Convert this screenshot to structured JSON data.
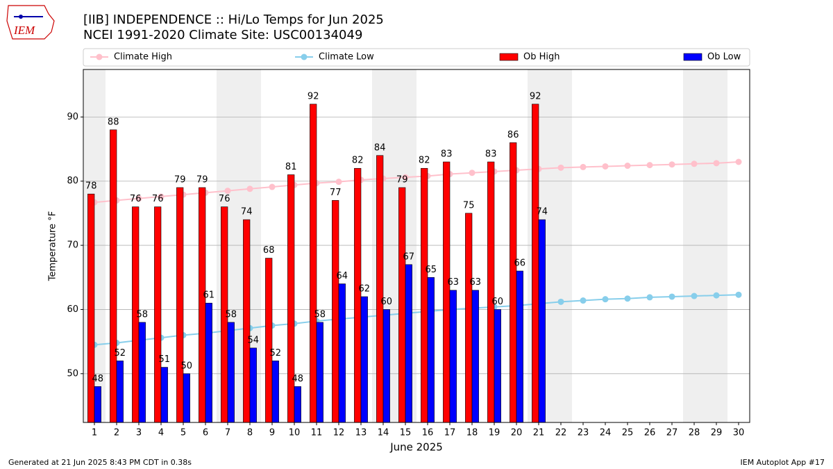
{
  "logo_text": "IEM",
  "footer_left": "Generated at 21 Jun 2025 8:43 PM CDT in 0.38s",
  "footer_right": "IEM Autoplot App #17",
  "chart_data": {
    "type": "bar_line",
    "title": "[IIB] INDEPENDENCE :: Hi/Lo Temps for Jun 2025",
    "subtitle": "NCEI 1991-2020 Climate Site: USC00134049",
    "x_label": "June 2025",
    "y_label": "Temperature °F",
    "x": [
      1,
      2,
      3,
      4,
      5,
      6,
      7,
      8,
      9,
      10,
      11,
      12,
      13,
      14,
      15,
      16,
      17,
      18,
      19,
      20,
      21,
      22,
      23,
      24,
      25,
      26,
      27,
      28,
      29,
      30
    ],
    "xlim": [
      0.5,
      30.5
    ],
    "xticks": [
      1,
      2,
      3,
      4,
      5,
      6,
      7,
      8,
      9,
      10,
      11,
      12,
      13,
      14,
      15,
      16,
      17,
      18,
      19,
      20,
      21,
      22,
      23,
      24,
      25,
      26,
      27,
      28,
      29,
      30
    ],
    "ylim": [
      42.4,
      97.4
    ],
    "yticks": [
      50,
      60,
      70,
      80,
      90
    ],
    "grid": true,
    "weekend_days": [
      1,
      7,
      8,
      14,
      15,
      21,
      22,
      28,
      29
    ],
    "series": [
      {
        "name": "Climate High",
        "kind": "line",
        "color": "#ffc0cb",
        "values": [
          76.7,
          77.0,
          77.3,
          77.6,
          77.9,
          78.2,
          78.5,
          78.8,
          79.1,
          79.4,
          79.7,
          79.9,
          80.2,
          80.4,
          80.6,
          80.8,
          81.1,
          81.3,
          81.5,
          81.7,
          81.9,
          82.1,
          82.2,
          82.3,
          82.4,
          82.5,
          82.6,
          82.7,
          82.8,
          83.0
        ]
      },
      {
        "name": "Climate Low",
        "kind": "line",
        "color": "#87ceeb",
        "values": [
          54.5,
          54.8,
          55.2,
          55.6,
          56.0,
          56.3,
          56.7,
          57.1,
          57.5,
          57.8,
          58.2,
          58.5,
          58.8,
          59.1,
          59.4,
          59.7,
          60.0,
          60.2,
          60.4,
          60.6,
          60.9,
          61.2,
          61.4,
          61.6,
          61.7,
          61.9,
          62.0,
          62.1,
          62.2,
          62.3
        ]
      },
      {
        "name": "Ob High",
        "kind": "bar",
        "color": "#ff0000",
        "values": [
          78,
          88,
          76,
          76,
          79,
          79,
          76,
          74,
          68,
          81,
          92,
          77,
          82,
          84,
          79,
          82,
          83,
          75,
          83,
          86,
          92,
          null,
          null,
          null,
          null,
          null,
          null,
          null,
          null,
          null
        ]
      },
      {
        "name": "Ob Low",
        "kind": "bar",
        "color": "#0000ff",
        "values": [
          48,
          52,
          58,
          51,
          50,
          61,
          58,
          54,
          52,
          48,
          58,
          64,
          62,
          60,
          67,
          65,
          63,
          63,
          60,
          66,
          74,
          null,
          null,
          null,
          null,
          null,
          null,
          null,
          null,
          null
        ]
      }
    ]
  }
}
